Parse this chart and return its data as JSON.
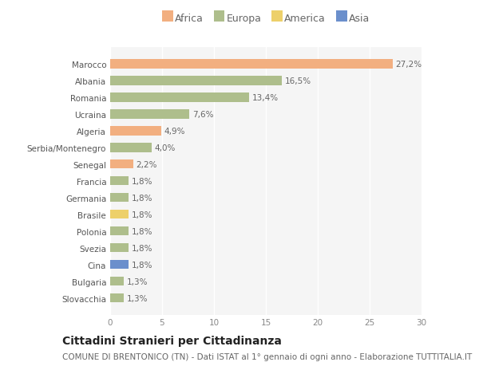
{
  "countries": [
    "Slovacchia",
    "Bulgaria",
    "Cina",
    "Svezia",
    "Polonia",
    "Brasile",
    "Germania",
    "Francia",
    "Senegal",
    "Serbia/Montenegro",
    "Algeria",
    "Ucraina",
    "Romania",
    "Albania",
    "Marocco"
  ],
  "values": [
    1.3,
    1.3,
    1.8,
    1.8,
    1.8,
    1.8,
    1.8,
    1.8,
    2.2,
    4.0,
    4.9,
    7.6,
    13.4,
    16.5,
    27.2
  ],
  "labels": [
    "1,3%",
    "1,3%",
    "1,8%",
    "1,8%",
    "1,8%",
    "1,8%",
    "1,8%",
    "1,8%",
    "2,2%",
    "4,0%",
    "4,9%",
    "7,6%",
    "13,4%",
    "16,5%",
    "27,2%"
  ],
  "continents": [
    "Europa",
    "Europa",
    "Asia",
    "Europa",
    "Europa",
    "America",
    "Europa",
    "Europa",
    "Africa",
    "Europa",
    "Africa",
    "Europa",
    "Europa",
    "Europa",
    "Africa"
  ],
  "continent_colors": {
    "Africa": "#F2AF80",
    "Europa": "#AEBE8C",
    "America": "#EDD06A",
    "Asia": "#6B8FCC"
  },
  "legend_order": [
    "Africa",
    "Europa",
    "America",
    "Asia"
  ],
  "title": "Cittadini Stranieri per Cittadinanza",
  "subtitle": "COMUNE DI BRENTONICO (TN) - Dati ISTAT al 1° gennaio di ogni anno - Elaborazione TUTTITALIA.IT",
  "xlim": [
    0,
    30
  ],
  "xticks": [
    0,
    5,
    10,
    15,
    20,
    25,
    30
  ],
  "bg_color": "#ffffff",
  "plot_bg_color": "#f5f5f5",
  "grid_color": "#ffffff",
  "bar_height": 0.55,
  "title_fontsize": 10,
  "subtitle_fontsize": 7.5,
  "label_fontsize": 7.5,
  "tick_fontsize": 7.5,
  "legend_fontsize": 9
}
